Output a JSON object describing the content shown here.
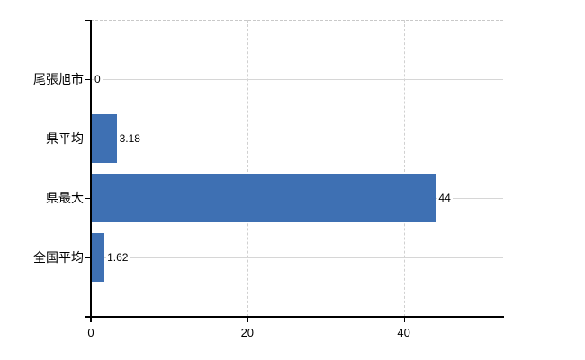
{
  "chart_data": {
    "type": "bar",
    "orientation": "horizontal",
    "title": "",
    "xlabel": "",
    "ylabel": "",
    "categories": [
      "尾張旭市",
      "県平均",
      "県最大",
      "全国平均"
    ],
    "values": [
      0,
      3.18,
      44,
      1.62
    ],
    "value_labels": [
      "0",
      "3.18",
      "44",
      "1.62"
    ],
    "xticks": [
      0,
      20,
      40
    ],
    "xtick_labels": [
      "0",
      "20",
      "40"
    ],
    "xlim": [
      0,
      52.7
    ],
    "grid": true,
    "legend": false,
    "bar_color": "#3e70b3",
    "axis_color": "#000000",
    "gridline_color": "#d6d6d6"
  }
}
